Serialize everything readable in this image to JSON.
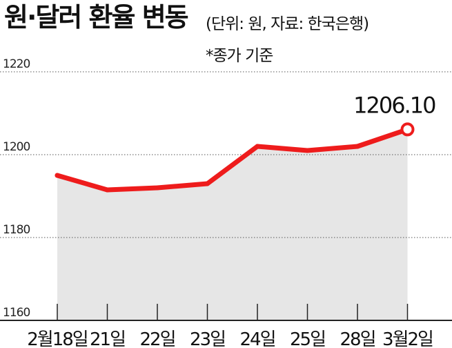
{
  "chart_data": {
    "type": "line",
    "title": "원·달러 환율 변동",
    "subtitle": "(단위: 원, 자료: 한국은행)",
    "note": "*종가 기준",
    "categories": [
      "2월18일",
      "21일",
      "22일",
      "23일",
      "24일",
      "25일",
      "28일",
      "3월2일"
    ],
    "series": [
      {
        "values": [
          1195.0,
          1191.5,
          1192.0,
          1193.0,
          1202.0,
          1201.0,
          1202.0,
          1206.1
        ]
      }
    ],
    "data_labels": [
      {
        "category": "3월2일",
        "text": "1206.10"
      }
    ],
    "y_ticks": [
      "1220",
      "1200",
      "1180",
      "1160"
    ],
    "ylim": [
      1160,
      1220
    ],
    "grid": "horizontal dotted",
    "colors": {
      "line": "#ee1c1c",
      "area": "#e6e6e6",
      "marker_fill": "#ffffff"
    }
  }
}
